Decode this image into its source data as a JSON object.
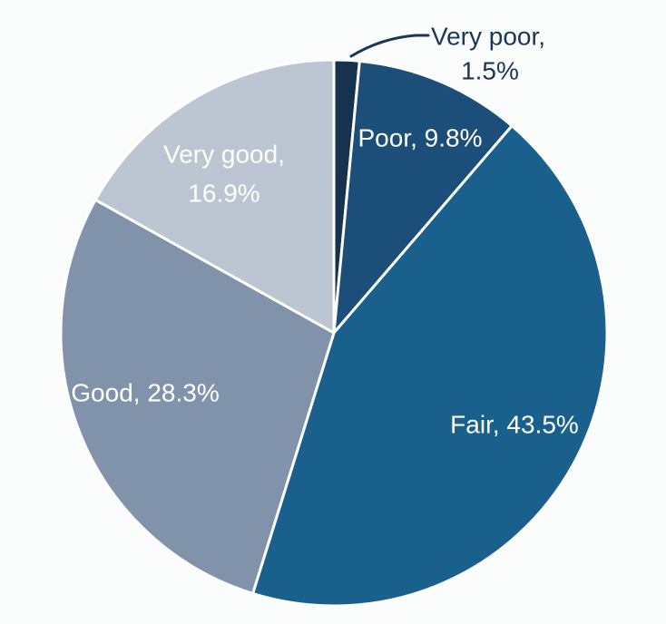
{
  "chart_data": {
    "type": "pie",
    "title": "",
    "unit": "%",
    "start_angle_deg": 0,
    "direction": "clockwise",
    "background_color": "#FBFDFD",
    "separator_color": "#FFFFFF",
    "callout_text_color": "#1B3655",
    "inside_label_color": "#FFFFFF",
    "categories": [
      "Very poor",
      "Poor",
      "Fair",
      "Good",
      "Very good"
    ],
    "values": [
      1.5,
      9.8,
      43.5,
      28.3,
      16.9
    ],
    "slices": [
      {
        "label": "Very poor",
        "value": 1.5,
        "color": "#15334F",
        "label_text": "Very poor, 1.5%",
        "label_lines": [
          "Very poor,",
          "1.5%"
        ],
        "label_position": "outside-callout"
      },
      {
        "label": "Poor",
        "value": 9.8,
        "color": "#1B4E78",
        "label_text": "Poor, 9.8%",
        "label_lines": [
          "Poor, 9.8%"
        ],
        "label_position": "inside"
      },
      {
        "label": "Fair",
        "value": 43.5,
        "color": "#19618C",
        "label_text": "Fair, 43.5%",
        "label_lines": [
          "Fair, 43.5%"
        ],
        "label_position": "inside"
      },
      {
        "label": "Good",
        "value": 28.3,
        "color": "#8093AB",
        "label_text": "Good, 28.3%",
        "label_lines": [
          "Good, 28.3%"
        ],
        "label_position": "inside"
      },
      {
        "label": "Very good",
        "value": 16.9,
        "color": "#BCC5D2",
        "label_text": "Very good, 16.9%",
        "label_lines": [
          "Very good,",
          "16.9%"
        ],
        "label_position": "inside"
      }
    ]
  }
}
